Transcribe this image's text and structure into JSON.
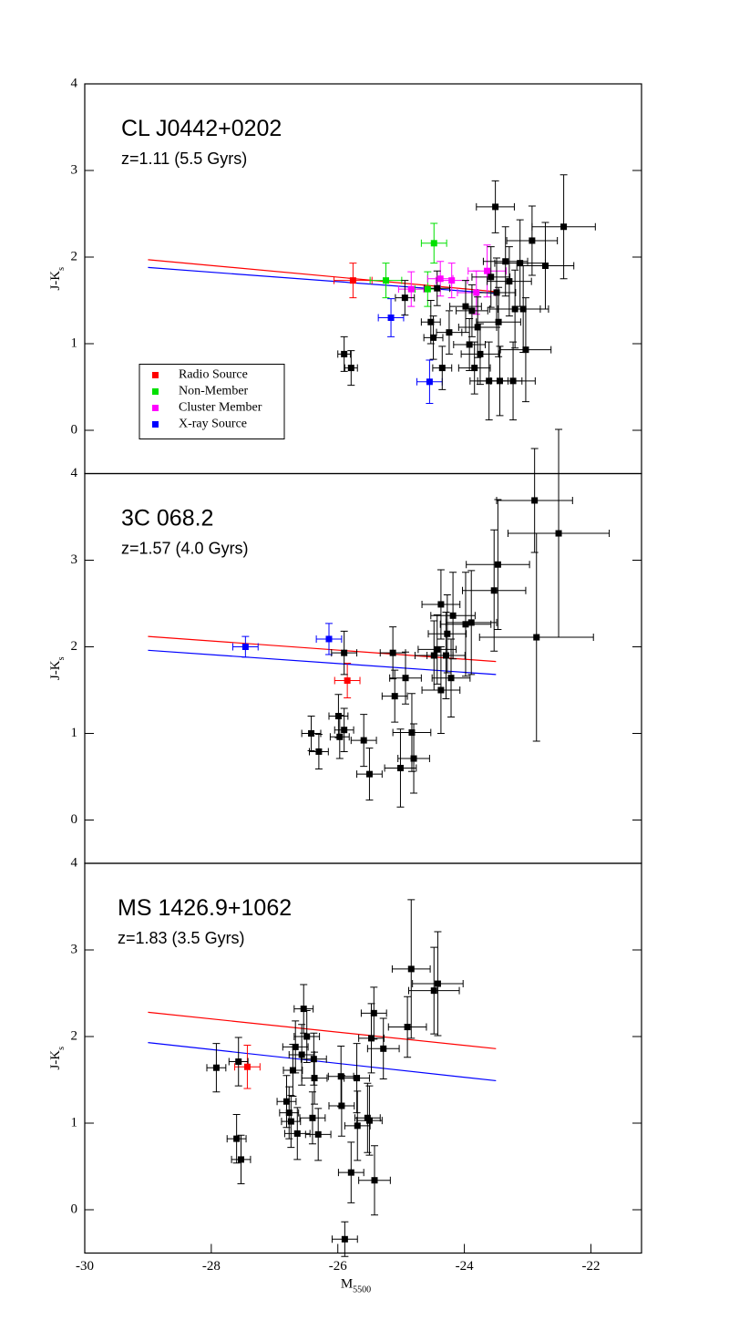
{
  "chart_data": [
    {
      "type": "scatter",
      "title": "CL J0442+0202",
      "subtitle": "z=1.11 (5.5 Gyrs)",
      "ylabel": {
        "main": "J-K",
        "sub": "s"
      },
      "xlim": [
        -30,
        -21.2
      ],
      "ylim": [
        -0.5,
        4
      ],
      "yticks": [
        0,
        1,
        2,
        3,
        4
      ],
      "legend": "lower left",
      "series": [
        {
          "name": "Radio Source",
          "color": "#ff0000",
          "x": [
            -25.76
          ],
          "values": [
            1.73
          ],
          "xerr": [
            0.3
          ],
          "yerr": [
            0.2
          ]
        },
        {
          "name": "Non-Member",
          "color": "#00e000",
          "x": [
            -25.24,
            -24.48,
            -24.58
          ],
          "values": [
            1.73,
            2.16,
            1.63
          ],
          "xerr": [
            0.25,
            0.2,
            0.2
          ],
          "yerr": [
            0.2,
            0.23,
            0.2
          ]
        },
        {
          "name": "Cluster Member",
          "color": "#ff00ff",
          "x": [
            -24.84,
            -24.38,
            -24.2,
            -23.81,
            -23.64
          ],
          "values": [
            1.63,
            1.75,
            1.73,
            1.59,
            1.84
          ],
          "xerr": [
            0.2,
            0.2,
            0.25,
            0.3,
            0.3
          ],
          "yerr": [
            0.2,
            0.2,
            0.2,
            0.25,
            0.3
          ]
        },
        {
          "name": "X-ray Source",
          "color": "#0000ff",
          "x": [
            -25.16,
            -24.55
          ],
          "values": [
            1.3,
            0.56
          ],
          "xerr": [
            0.2,
            0.2
          ],
          "yerr": [
            0.22,
            0.25
          ]
        },
        {
          "color": "#000000",
          "x": [
            -25.9,
            -25.79,
            -24.94,
            -24.53,
            -24.49,
            -24.43,
            -24.35,
            -24.24,
            -23.98,
            -23.92,
            -23.88,
            -23.84,
            -23.79,
            -23.75,
            -23.61,
            -23.58,
            -23.51,
            -23.49,
            -23.46,
            -23.44,
            -23.35,
            -23.29,
            -23.23,
            -23.2,
            -23.12,
            -23.07,
            -23.03,
            -22.93,
            -22.72,
            -22.43
          ],
          "values": [
            0.88,
            0.72,
            1.53,
            1.25,
            1.07,
            1.64,
            0.72,
            1.13,
            1.43,
            0.99,
            1.38,
            0.72,
            1.19,
            0.88,
            0.57,
            1.77,
            2.58,
            1.59,
            1.25,
            0.57,
            1.95,
            1.72,
            0.57,
            1.4,
            1.93,
            1.4,
            0.93,
            2.19,
            1.9,
            2.35
          ],
          "xerr": [
            0.1,
            0.1,
            0.15,
            0.15,
            0.15,
            0.2,
            0.15,
            0.2,
            0.25,
            0.25,
            0.25,
            0.25,
            0.3,
            0.3,
            0.3,
            0.3,
            0.3,
            0.3,
            0.35,
            0.35,
            0.35,
            0.35,
            0.35,
            0.4,
            0.4,
            0.4,
            0.4,
            0.4,
            0.45,
            0.5
          ],
          "yerr": [
            0.2,
            0.2,
            0.2,
            0.25,
            0.25,
            0.2,
            0.25,
            0.25,
            0.3,
            0.3,
            0.3,
            0.3,
            0.35,
            0.35,
            0.45,
            0.35,
            0.3,
            0.4,
            0.4,
            0.4,
            0.4,
            0.4,
            0.45,
            0.45,
            0.5,
            0.5,
            0.6,
            0.4,
            0.5,
            0.6
          ]
        }
      ],
      "fits": [
        {
          "color": "#ff0000",
          "x": [
            -29,
            -23.5
          ],
          "values": [
            1.97,
            1.6
          ]
        },
        {
          "color": "#0000ff",
          "x": [
            -29,
            -23.5
          ],
          "values": [
            1.88,
            1.58
          ]
        }
      ]
    },
    {
      "type": "scatter",
      "title": "3C 068.2",
      "subtitle": "z=1.57 (4.0 Gyrs)",
      "ylabel": {
        "main": "J-K",
        "sub": "s"
      },
      "xlim": [
        -30,
        -21.2
      ],
      "ylim": [
        -0.5,
        4
      ],
      "yticks": [
        0,
        1,
        2,
        3,
        4
      ],
      "series": [
        {
          "color": "#0000ff",
          "x": [
            -27.46,
            -26.14
          ],
          "values": [
            2.0,
            2.09
          ],
          "xerr": [
            0.2,
            0.2
          ],
          "yerr": [
            0.12,
            0.18
          ]
        },
        {
          "color": "#ff0000",
          "x": [
            -25.85
          ],
          "values": [
            1.61
          ],
          "xerr": [
            0.2
          ],
          "yerr": [
            0.2
          ]
        },
        {
          "color": "#000000",
          "x": [
            -26.42,
            -26.3,
            -25.99,
            -25.97,
            -25.9,
            -25.9,
            -25.59,
            -25.5,
            -25.13,
            -25.1,
            -25.01,
            -24.93,
            -24.8,
            -24.48,
            -24.43,
            -24.37,
            -24.37,
            -24.29,
            -24.27,
            -24.21,
            -24.18,
            -23.98,
            -23.89,
            -23.53,
            -23.47,
            -22.89,
            -22.86,
            -22.51,
            -24.83
          ],
          "values": [
            1.0,
            0.79,
            1.2,
            0.96,
            1.04,
            1.93,
            0.92,
            0.53,
            1.93,
            1.43,
            0.6,
            1.64,
            0.71,
            1.9,
            1.97,
            1.5,
            2.49,
            1.9,
            2.15,
            1.64,
            2.36,
            2.26,
            2.28,
            2.65,
            2.95,
            3.69,
            2.11,
            3.31,
            1.01
          ],
          "xerr": [
            0.15,
            0.15,
            0.15,
            0.15,
            0.15,
            0.2,
            0.2,
            0.2,
            0.2,
            0.2,
            0.25,
            0.25,
            0.25,
            0.3,
            0.3,
            0.3,
            0.3,
            0.3,
            0.3,
            0.3,
            0.35,
            0.4,
            0.4,
            0.5,
            0.5,
            0.6,
            0.9,
            0.8,
            0.3
          ],
          "yerr": [
            0.2,
            0.2,
            0.25,
            0.25,
            0.25,
            0.25,
            0.3,
            0.3,
            0.3,
            0.3,
            0.45,
            0.3,
            0.4,
            0.4,
            0.4,
            0.5,
            0.4,
            0.5,
            0.45,
            0.45,
            0.5,
            0.6,
            0.6,
            0.7,
            0.75,
            0.6,
            1.2,
            1.2,
            0.45
          ]
        }
      ],
      "fits": [
        {
          "color": "#ff0000",
          "x": [
            -29,
            -23.5
          ],
          "values": [
            2.12,
            1.83
          ]
        },
        {
          "color": "#0000ff",
          "x": [
            -29,
            -23.5
          ],
          "values": [
            1.96,
            1.68
          ]
        }
      ]
    },
    {
      "type": "scatter",
      "title": "MS 1426.9+1062",
      "subtitle": "z=1.83 (3.5 Gyrs)",
      "ylabel": {
        "main": "J-K",
        "sub": "s"
      },
      "xlabel": {
        "main": "M",
        "sub": "5500"
      },
      "xlim": [
        -30,
        -21.2
      ],
      "xticks": [
        -30,
        -28,
        -26,
        -24,
        -22
      ],
      "ylim": [
        -0.5,
        4
      ],
      "yticks": [
        0,
        1,
        2,
        3,
        4
      ],
      "series": [
        {
          "color": "#ff0000",
          "x": [
            -27.43
          ],
          "values": [
            1.65
          ],
          "xerr": [
            0.2
          ],
          "yerr": [
            0.25
          ]
        },
        {
          "color": "#000000",
          "x": [
            -27.92,
            -27.57,
            -27.6,
            -27.53,
            -26.81,
            -26.77,
            -26.74,
            -26.71,
            -26.67,
            -26.64,
            -26.57,
            -26.54,
            -26.49,
            -26.4,
            -26.38,
            -26.37,
            -26.31,
            -25.95,
            -25.94,
            -25.89,
            -25.79,
            -25.7,
            -25.69,
            -25.53,
            -25.5,
            -25.47,
            -25.43,
            -25.42,
            -25.28,
            -24.9,
            -24.84,
            -24.48,
            -24.42
          ],
          "values": [
            1.64,
            1.71,
            0.82,
            0.58,
            1.25,
            1.12,
            1.02,
            1.61,
            1.88,
            0.88,
            1.79,
            2.32,
            2.0,
            1.06,
            1.74,
            1.52,
            0.87,
            1.54,
            1.2,
            -0.34,
            0.43,
            1.52,
            0.97,
            1.06,
            1.03,
            1.98,
            2.27,
            0.34,
            1.86,
            2.11,
            2.78,
            2.53,
            2.61
          ],
          "xerr": [
            0.15,
            0.15,
            0.15,
            0.15,
            0.15,
            0.15,
            0.15,
            0.15,
            0.2,
            0.2,
            0.2,
            0.15,
            0.2,
            0.2,
            0.2,
            0.2,
            0.2,
            0.2,
            0.2,
            0.2,
            0.2,
            0.2,
            0.2,
            0.2,
            0.2,
            0.2,
            0.2,
            0.25,
            0.25,
            0.3,
            0.3,
            0.4,
            0.4
          ],
          "yerr": [
            0.28,
            0.28,
            0.28,
            0.28,
            0.3,
            0.3,
            0.3,
            0.3,
            0.3,
            0.3,
            0.35,
            0.28,
            0.3,
            0.3,
            0.3,
            0.3,
            0.3,
            0.35,
            0.35,
            0.2,
            0.35,
            0.4,
            0.4,
            0.4,
            0.4,
            0.4,
            0.3,
            0.4,
            0.35,
            0.35,
            0.8,
            0.5,
            0.6
          ]
        }
      ],
      "fits": [
        {
          "color": "#ff0000",
          "x": [
            -29,
            -23.5
          ],
          "values": [
            2.28,
            1.86
          ]
        },
        {
          "color": "#0000ff",
          "x": [
            -29,
            -23.5
          ],
          "values": [
            1.93,
            1.49
          ]
        }
      ]
    }
  ]
}
